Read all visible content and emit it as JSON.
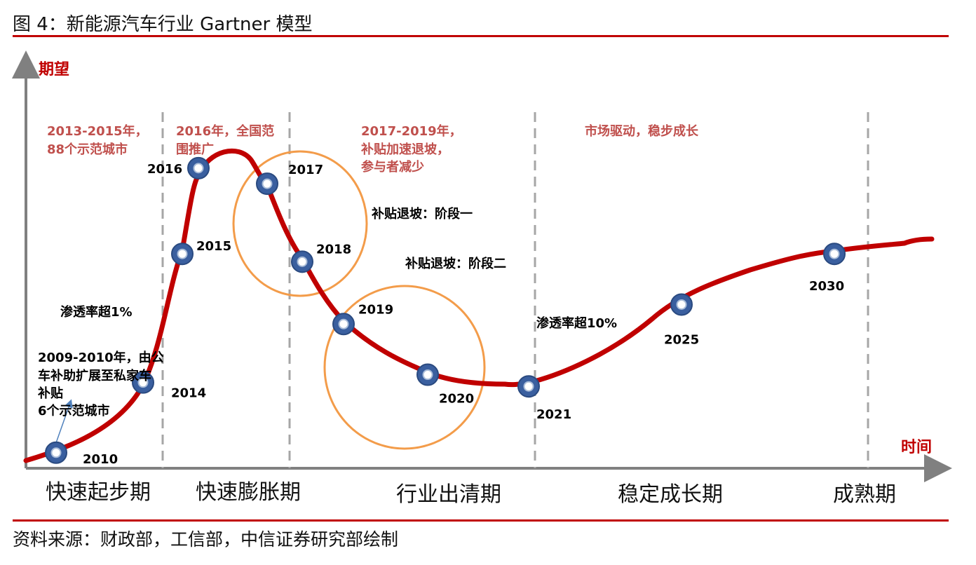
{
  "figure": {
    "title": "图 4：新能源汽车行业 Gartner 模型",
    "source": "资料来源：财政部，工信部，中信证券研究部绘制"
  },
  "chart_data": {
    "type": "line",
    "ylabel": "期望",
    "xlabel": "时间",
    "grid": false,
    "legend": "none",
    "colors": {
      "curve": "#c00000",
      "marker": "#3a5f9f",
      "circle": "#f39c4a",
      "accent_text": "#c0504d",
      "axis": "#808080"
    },
    "series": [
      {
        "points": [
          {
            "x": "2010",
            "y": 0.04
          },
          {
            "x": "2014",
            "y": 0.22
          },
          {
            "x": "2015",
            "y": 0.55
          },
          {
            "x": "2016",
            "y": 0.77
          },
          {
            "x": "2017",
            "y": 0.73
          },
          {
            "x": "2018",
            "y": 0.53
          },
          {
            "x": "2019",
            "y": 0.37
          },
          {
            "x": "2020",
            "y": 0.24
          },
          {
            "x": "2021",
            "y": 0.21
          },
          {
            "x": "2025",
            "y": 0.42
          },
          {
            "x": "2030",
            "y": 0.55
          }
        ]
      }
    ],
    "phases": [
      "快速起步期",
      "快速膨胀期",
      "行业出清期",
      "稳定成长期",
      "成熟期"
    ],
    "phase_notes": [
      {
        "lines": [
          "2013-2015年，",
          "88个示范城市"
        ]
      },
      {
        "lines": [
          "2016年，全国范",
          "围推广"
        ]
      },
      {
        "lines": [
          "2017-2019年，",
          "补贴加速退坡，",
          "参与者减少"
        ]
      },
      {
        "lines": [
          "市场驱动，稳步成长"
        ]
      }
    ],
    "annotations": {
      "subsidy_stage1": "补贴退坡：阶段一",
      "subsidy_stage2": "补贴退坡：阶段二",
      "penetration_1": "渗透率超1%",
      "penetration_10": "渗透率超10%",
      "early_note": [
        "2009-2010年，由公",
        "车补助扩展至私家车",
        "补贴",
        "6个示范城市"
      ]
    }
  }
}
